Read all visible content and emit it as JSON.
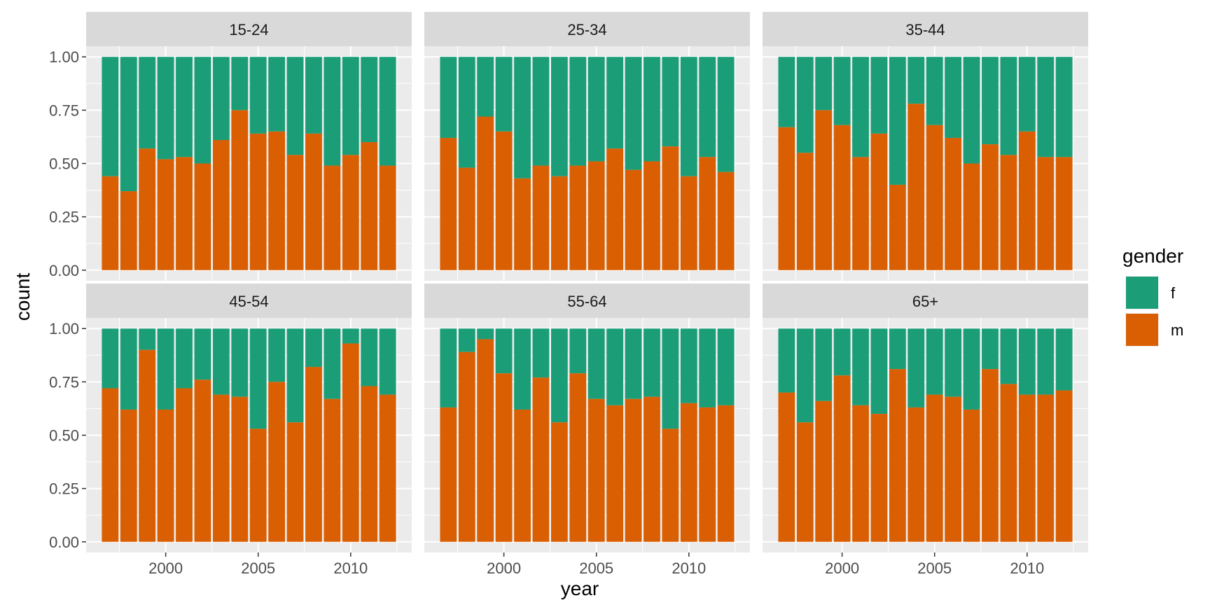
{
  "chart_data": {
    "type": "bar",
    "stacked": "fill",
    "xlabel": "year",
    "ylabel": "count",
    "ylim": [
      0,
      1
    ],
    "y_ticks": [
      "0.00",
      "0.25",
      "0.50",
      "0.75",
      "1.00"
    ],
    "x_ticks": [
      "2000",
      "2005",
      "2010"
    ],
    "x_tick_values": [
      2000,
      2005,
      2010
    ],
    "years": [
      1997,
      1998,
      1999,
      2000,
      2001,
      2002,
      2003,
      2004,
      2005,
      2006,
      2007,
      2008,
      2009,
      2010,
      2011,
      2012
    ],
    "legend": {
      "title": "gender",
      "position": "right",
      "items": [
        {
          "key": "f",
          "label": "f",
          "color": "#1b9e77"
        },
        {
          "key": "m",
          "label": "m",
          "color": "#d95f02"
        }
      ]
    },
    "grid": true,
    "panels": [
      {
        "label": "15-24",
        "m_share": [
          0.44,
          0.37,
          0.57,
          0.52,
          0.53,
          0.5,
          0.61,
          0.75,
          0.64,
          0.65,
          0.54,
          0.64,
          0.49,
          0.54,
          0.6,
          0.49
        ]
      },
      {
        "label": "25-34",
        "m_share": [
          0.62,
          0.48,
          0.72,
          0.65,
          0.43,
          0.49,
          0.44,
          0.49,
          0.51,
          0.57,
          0.47,
          0.51,
          0.58,
          0.44,
          0.53,
          0.46
        ]
      },
      {
        "label": "35-44",
        "m_share": [
          0.67,
          0.55,
          0.75,
          0.68,
          0.53,
          0.64,
          0.4,
          0.78,
          0.68,
          0.62,
          0.5,
          0.59,
          0.54,
          0.65,
          0.53,
          0.53
        ]
      },
      {
        "label": "45-54",
        "m_share": [
          0.72,
          0.62,
          0.9,
          0.62,
          0.72,
          0.76,
          0.69,
          0.68,
          0.53,
          0.75,
          0.56,
          0.82,
          0.67,
          0.93,
          0.73,
          0.69
        ]
      },
      {
        "label": "55-64",
        "m_share": [
          0.63,
          0.89,
          0.95,
          0.79,
          0.62,
          0.77,
          0.56,
          0.79,
          0.67,
          0.64,
          0.67,
          0.68,
          0.53,
          0.65,
          0.63,
          0.64
        ]
      },
      {
        "label": "65+",
        "m_share": [
          0.7,
          0.56,
          0.66,
          0.78,
          0.64,
          0.6,
          0.81,
          0.63,
          0.69,
          0.68,
          0.62,
          0.81,
          0.74,
          0.69,
          0.69,
          0.71
        ]
      }
    ]
  }
}
